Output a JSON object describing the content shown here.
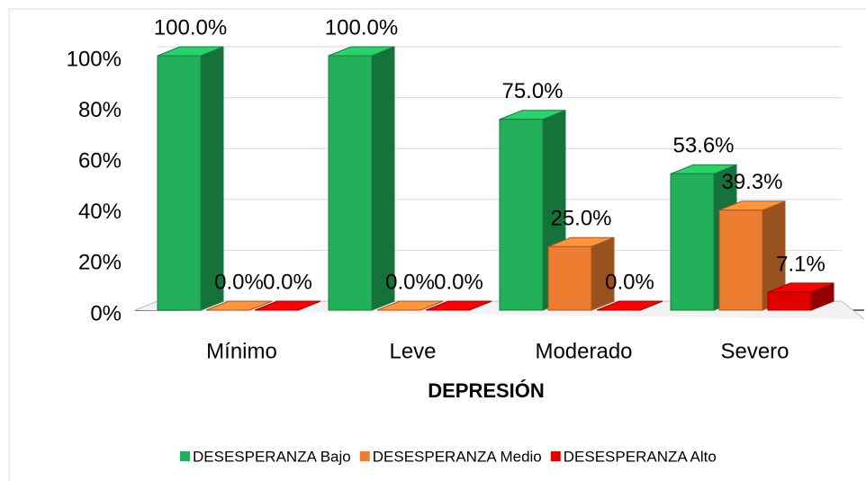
{
  "chart_data": {
    "type": "bar3d",
    "x_label": "DEPRESIÓN",
    "categories": [
      "Mínimo",
      "Leve",
      "Moderado",
      "Severo"
    ],
    "series": [
      {
        "name": "DESESPERANZA Bajo",
        "color": "#22b05a",
        "values": [
          100,
          100,
          75,
          53.6
        ],
        "value_labels": [
          "100.0%",
          "100.0%",
          "75.0%",
          "53.6%"
        ]
      },
      {
        "name": "DESESPERANZA Medio",
        "color": "#ed7d31",
        "values": [
          0,
          0,
          25,
          39.3
        ],
        "value_labels": [
          "0.0%",
          "0.0%",
          "25.0%",
          "39.3%"
        ]
      },
      {
        "name": "DESESPERANZA Alto",
        "color": "#e00000",
        "values": [
          0,
          0,
          0,
          7.1
        ],
        "value_labels": [
          "0.0%",
          "0.0%",
          "0.0%",
          "7.1%"
        ]
      }
    ],
    "ylim": [
      0,
      100
    ],
    "yticks": [
      {
        "value": 0,
        "label": "0%"
      },
      {
        "value": 20,
        "label": "20%"
      },
      {
        "value": 40,
        "label": "40%"
      },
      {
        "value": 60,
        "label": "60%"
      },
      {
        "value": 80,
        "label": "80%"
      },
      {
        "value": 100,
        "label": "100%"
      }
    ],
    "grid": true,
    "legend": "bottom"
  }
}
